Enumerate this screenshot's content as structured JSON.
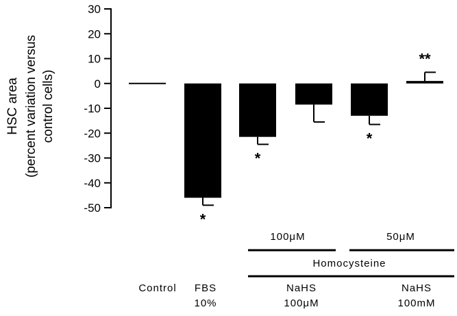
{
  "chart_data": {
    "type": "bar",
    "ylabel_lines": [
      "HSC area",
      "(percent variation versus",
      "control cells)"
    ],
    "ylim": [
      -50,
      30
    ],
    "yticks": [
      30,
      20,
      10,
      0,
      -10,
      -20,
      -30,
      -40,
      -50
    ],
    "categories": [
      {
        "id": "control",
        "label_lines": [
          "Control"
        ]
      },
      {
        "id": "fbs",
        "label_lines": [
          "FBS",
          "10%"
        ]
      },
      {
        "id": "hcy100",
        "label_lines": []
      },
      {
        "id": "hcy100_nahs",
        "label_lines": [
          "NaHS",
          "100μM"
        ]
      },
      {
        "id": "hcy50",
        "label_lines": []
      },
      {
        "id": "hcy50_nahs",
        "label_lines": [
          "NaHS",
          "100mM"
        ]
      }
    ],
    "values": [
      0,
      -46,
      -21.5,
      -8.5,
      -13,
      1
    ],
    "error_bars": [
      0,
      3,
      3,
      7,
      3.5,
      3.5
    ],
    "significance": [
      "",
      "*",
      "*",
      "",
      "*",
      "**"
    ],
    "group_labels": {
      "group1": "100μM",
      "group2": "50μM",
      "treatment": "Homocysteine"
    },
    "grid": false,
    "legend": "none"
  }
}
